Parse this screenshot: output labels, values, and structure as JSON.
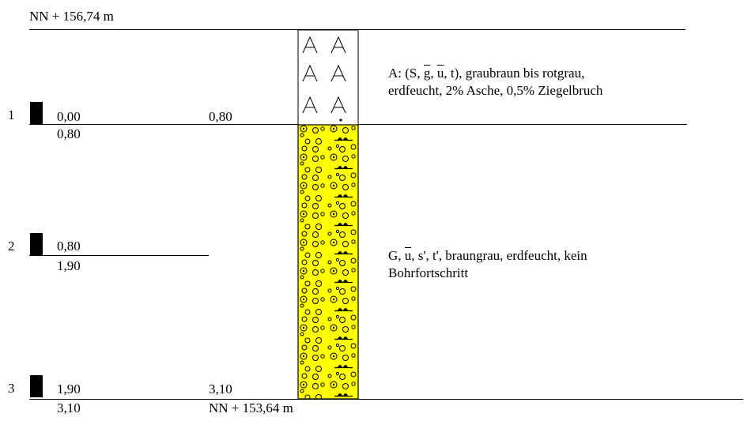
{
  "profile": {
    "top_elevation": "NN + 156,74 m",
    "bottom_elevation": "NN + 153,64 m"
  },
  "samples": [
    {
      "number": "1",
      "from": "0,00",
      "to": "0,80"
    },
    {
      "number": "2",
      "from": "0,80",
      "to": "1,90"
    },
    {
      "number": "3",
      "from": "1,90",
      "to": "3,10"
    }
  ],
  "layers": [
    {
      "bottom_depth": "0,80",
      "desc_line1": [
        "A: (S, ",
        "g",
        ", ",
        "u",
        ", t), graubraun bis rotgrau,"
      ],
      "desc_line2": "erdfeucht, 2% Asche, 0,5% Ziegelbruch",
      "fill_color": "#ffffff"
    },
    {
      "bottom_depth": "3,10",
      "desc_line1": [
        "G, ",
        "u",
        ", s', t', braungrau, erdfeucht, kein"
      ],
      "desc_line2": "Bohrfortschritt",
      "fill_color": "#ffff00"
    }
  ]
}
